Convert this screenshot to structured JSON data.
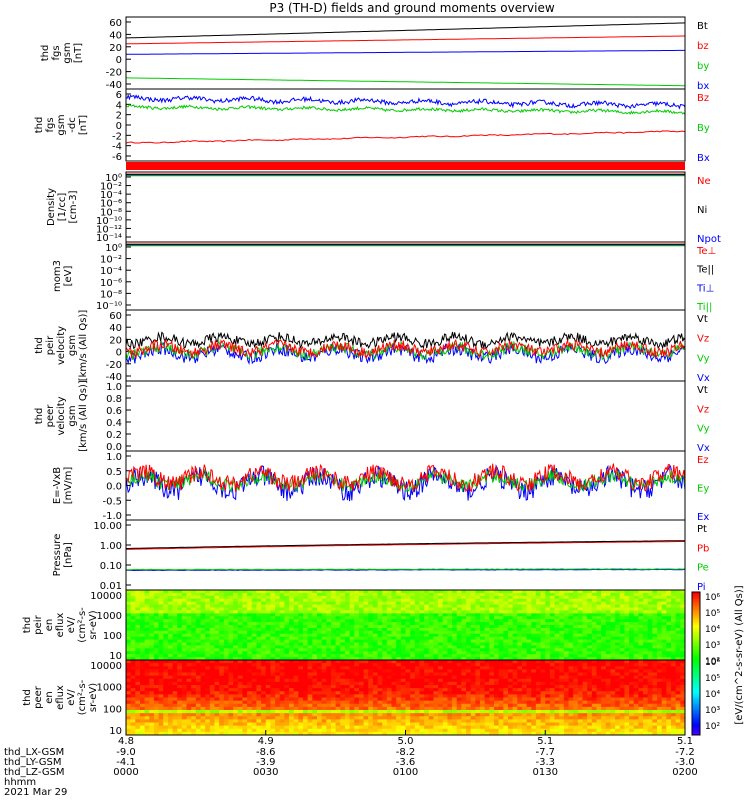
{
  "title": "P3 (TH-D) fields and ground moments overview",
  "chart_data": {
    "type": "line",
    "title": "P3 (TH-D) fields and ground moments overview",
    "date": "2021 Mar 29",
    "panels": [
      {
        "id": "fgs",
        "ylabel": [
          "thd",
          "fgs",
          "gsm",
          "[nT]"
        ],
        "yticks": [
          "60",
          "40",
          "20",
          "0",
          "-20",
          "-40"
        ],
        "ylim": [
          -45,
          65
        ],
        "legend": [
          {
            "label": "Bt",
            "color": "#000000"
          },
          {
            "label": "bz",
            "color": "#ff0000"
          },
          {
            "label": "by",
            "color": "#00cc00"
          },
          {
            "label": "bx",
            "color": "#0000ff"
          }
        ],
        "series": [
          {
            "name": "Bt",
            "color": "#000000",
            "start": 33,
            "end": 56,
            "noise": 0
          },
          {
            "name": "bz",
            "color": "#ff0000",
            "start": 24,
            "end": 36,
            "noise": 0
          },
          {
            "name": "by",
            "color": "#00cc00",
            "start": -28,
            "end": -40,
            "noise": 0
          },
          {
            "name": "bx",
            "color": "#0000ff",
            "start": 8,
            "end": 14,
            "noise": 0
          }
        ]
      },
      {
        "id": "fgs_dc",
        "ylabel": [
          "thd",
          "fgs",
          "gsm",
          "-dc",
          "[nT]"
        ],
        "yticks": [
          "6",
          "4",
          "2",
          "0",
          "-2",
          "-4",
          "-6"
        ],
        "ylim": [
          -7,
          7
        ],
        "legend": [
          {
            "label": "Bz",
            "color": "#ff0000"
          },
          {
            "label": "By",
            "color": "#00cc00"
          },
          {
            "label": "Bx",
            "color": "#0000ff"
          }
        ],
        "series": [
          {
            "name": "Bz",
            "color": "#ff0000",
            "start": -3.5,
            "end": -1.2,
            "noise": 0.15
          },
          {
            "name": "By",
            "color": "#00cc00",
            "start": 3.5,
            "end": 2.5,
            "noise": 0.4
          },
          {
            "name": "Bx",
            "color": "#0000ff",
            "start": 5.2,
            "end": 3.8,
            "noise": 0.6
          }
        ]
      },
      {
        "id": "density",
        "ylabel": [
          "Density",
          "[1/cc]",
          "[cm-3]"
        ],
        "yticks": [
          "10⁰",
          "10⁻²",
          "10⁻⁴",
          "10⁻⁶",
          "10⁻⁸",
          "10⁻¹⁰",
          "10⁻¹²",
          "10⁻¹⁴"
        ],
        "legend": [
          {
            "label": "Ne",
            "color": "#ff0000"
          },
          {
            "label": "Ni",
            "color": "#000000"
          },
          {
            "label": "Npot",
            "color": "#0000ff"
          }
        ]
      },
      {
        "id": "temp",
        "ylabel": [
          "mom3",
          "[eV]"
        ],
        "yticks": [
          "10⁰",
          "10⁻²",
          "10⁻⁴",
          "10⁻⁶",
          "10⁻⁸",
          "10⁻¹⁰"
        ],
        "legend": [
          {
            "label": "Te⊥",
            "color": "#ff0000"
          },
          {
            "label": "Te||",
            "color": "#000000"
          },
          {
            "label": "Ti⊥",
            "color": "#0000ff"
          },
          {
            "label": "Ti||",
            "color": "#00cc00"
          }
        ]
      },
      {
        "id": "peir_v",
        "ylabel": [
          "thd",
          "peir",
          "velocity",
          "gsm",
          "[km/s (All Qs)]"
        ],
        "yticks": [
          "60",
          "40",
          "20",
          "0",
          "-20",
          "-40"
        ],
        "ylim": [
          -45,
          65
        ],
        "legend": [
          {
            "label": "Vt",
            "color": "#000000"
          },
          {
            "label": "Vz",
            "color": "#ff0000"
          },
          {
            "label": "Vy",
            "color": "#00cc00"
          },
          {
            "label": "Vx",
            "color": "#0000ff"
          }
        ],
        "series": [
          {
            "name": "Vx",
            "color": "#0000ff",
            "start": -2,
            "end": -2,
            "noise": 14
          },
          {
            "name": "Vy",
            "color": "#00cc00",
            "start": 2,
            "end": 2,
            "noise": 12
          },
          {
            "name": "Vt",
            "color": "#000000",
            "start": 18,
            "end": 18,
            "noise": 11
          },
          {
            "name": "Vz",
            "color": "#ff0000",
            "start": 5,
            "end": 5,
            "noise": 12
          }
        ]
      },
      {
        "id": "peer_v",
        "ylabel": [
          "thd",
          "peer",
          "velocity",
          "gsm",
          "[km/s (All Qs)]"
        ],
        "yticks": [
          "1.0",
          "0.8",
          "0.6",
          "0.4",
          "0.2",
          "0.0"
        ],
        "legend": [
          {
            "label": "Vt",
            "color": "#000000"
          },
          {
            "label": "Vz",
            "color": "#ff0000"
          },
          {
            "label": "Vy",
            "color": "#00cc00"
          },
          {
            "label": "Vx",
            "color": "#0000ff"
          }
        ]
      },
      {
        "id": "efield",
        "ylabel": [
          "E=-VxB",
          "[mV/m]"
        ],
        "yticks": [
          "1.0",
          "0.5",
          "0.0",
          "-0.5",
          "-1.0"
        ],
        "ylim": [
          -1.35,
          1.2
        ],
        "legend": [
          {
            "label": "Ez",
            "color": "#ff0000"
          },
          {
            "label": "Ey",
            "color": "#00cc00"
          },
          {
            "label": "Ex",
            "color": "#0000ff"
          }
        ],
        "series": [
          {
            "name": "Ex",
            "color": "#0000ff",
            "start": 0.0,
            "end": 0.0,
            "noise": 0.55
          },
          {
            "name": "Ey",
            "color": "#00cc00",
            "start": 0.1,
            "end": 0.1,
            "noise": 0.35
          },
          {
            "name": "Ez",
            "color": "#ff0000",
            "start": 0.2,
            "end": 0.2,
            "noise": 0.45
          }
        ]
      },
      {
        "id": "pressure",
        "ylabel": [
          "Pressure",
          "[nPa]"
        ],
        "yticks": [
          "10.00",
          "1.00",
          "0.10",
          "0.01"
        ],
        "ylim_log": [
          -2,
          1
        ],
        "legend": [
          {
            "label": "Pt",
            "color": "#000000"
          },
          {
            "label": "Pb",
            "color": "#ff0000"
          },
          {
            "label": "Pe",
            "color": "#00cc00"
          },
          {
            "label": "Pi",
            "color": "#0000ff"
          }
        ],
        "series": [
          {
            "name": "Pi",
            "color": "#0000ff",
            "start": 0.07,
            "end": 0.075,
            "noise": 0.05
          },
          {
            "name": "Pe",
            "color": "#00cc00",
            "start": 0.075,
            "end": 0.08,
            "noise": 0.05
          },
          {
            "name": "Pb",
            "color": "#ff0000",
            "start": 0.55,
            "end": 1.2,
            "noise": 0.01
          },
          {
            "name": "Pt",
            "color": "#000000",
            "start": 0.6,
            "end": 1.3,
            "noise": 0.01
          }
        ]
      },
      {
        "id": "peir_en",
        "ylabel": [
          "thd",
          "peir",
          "en",
          "eflux",
          "eV/",
          "(cm²-s-",
          "sr-eV)"
        ],
        "yticks": [
          "10000",
          "1000",
          "100",
          "10"
        ]
      },
      {
        "id": "peer_en",
        "ylabel": [
          "thd",
          "peer",
          "en",
          "eflux",
          "eV/",
          "(cm²-s-",
          "sr-eV)"
        ],
        "yticks": [
          "10000",
          "1000",
          "100",
          "10"
        ]
      }
    ],
    "colorbar": {
      "ticks": [
        "10⁶",
        "10⁵",
        "10⁴",
        "10³",
        "10²"
      ],
      "label": "[eV/(cm^2-s-sr-eV) (All Qs)]"
    },
    "x_axis": {
      "ticks": [
        "4.8",
        "4.9",
        "5.0",
        "5.1",
        "5.1"
      ],
      "rows": [
        {
          "label": "thd_LX-GSM",
          "values": [
            "-9.0",
            "-8.6",
            "-8.2",
            "-7.7",
            "-7.2"
          ]
        },
        {
          "label": "thd_LY-GSM",
          "values": [
            "-4.1",
            "-3.9",
            "-3.6",
            "-3.3",
            "-3.0"
          ]
        },
        {
          "label": "thd_LZ-GSM",
          "values": [
            "0000",
            "0030",
            "0100",
            "0130",
            "0200"
          ]
        },
        {
          "label": "hhmm",
          "values": []
        }
      ],
      "date_label": "2021 Mar 29"
    }
  }
}
